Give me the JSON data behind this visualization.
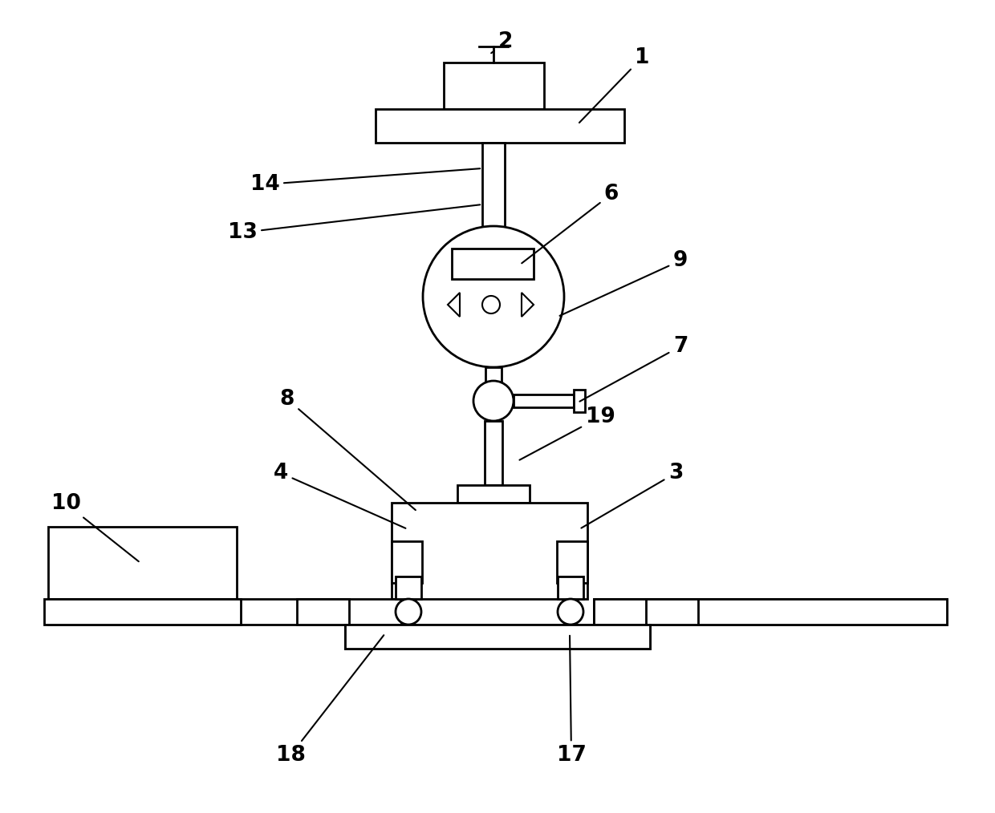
{
  "bg_color": "#ffffff",
  "line_color": "#000000",
  "figsize": [
    12.4,
    10.14
  ],
  "dpi": 100
}
